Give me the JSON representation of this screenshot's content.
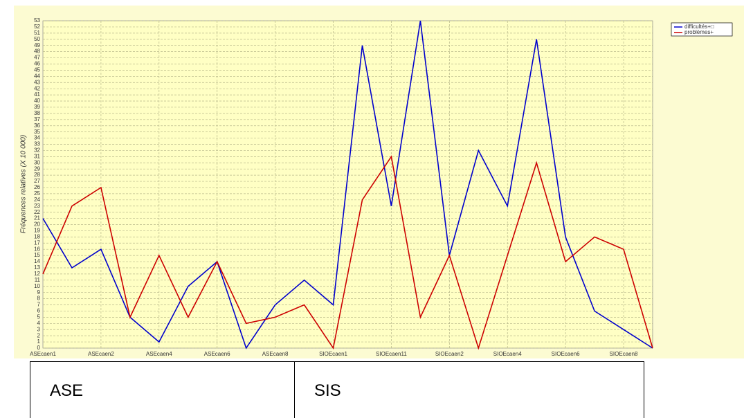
{
  "chart_data": {
    "type": "line",
    "y_label": "Fréquences relatives (X 10 000)",
    "categories": [
      "ASEcaen1",
      null,
      "ASEcaen2",
      null,
      "ASEcaen4",
      null,
      "ASEcaen6",
      null,
      "ASEcaen8",
      null,
      "SIOEcaen1",
      null,
      "SIOEcaen11",
      null,
      "SIOEcaen2",
      null,
      "SIOEcaen4",
      null,
      "SIOEcaen6",
      null,
      "SIOEcaen8",
      null
    ],
    "series": [
      {
        "name": "difficultés+□",
        "color": "#0000cc",
        "values": [
          21,
          13,
          16,
          5,
          1,
          10,
          14,
          0,
          7,
          11,
          7,
          49,
          23,
          53,
          15,
          32,
          23,
          50,
          18,
          6,
          3,
          0
        ]
      },
      {
        "name": "problèmes+",
        "color": "#cc0000",
        "values": [
          12,
          23,
          26,
          5,
          15,
          5,
          14,
          4,
          5,
          7,
          0,
          24,
          31,
          5,
          15,
          0,
          15,
          30,
          14,
          18,
          16,
          0
        ]
      }
    ],
    "ylim": [
      0,
      53
    ],
    "yticks": [
      0,
      1,
      2,
      3,
      4,
      5,
      6,
      7,
      8,
      9,
      10,
      11,
      12,
      13,
      14,
      15,
      16,
      17,
      18,
      19,
      20,
      21,
      22,
      23,
      24,
      25,
      26,
      27,
      28,
      29,
      30,
      31,
      32,
      33,
      34,
      35,
      36,
      37,
      38,
      39,
      40,
      41,
      42,
      43,
      44,
      45,
      46,
      47,
      48,
      49,
      50,
      51,
      52,
      53
    ],
    "grid": true,
    "legend": "top-right"
  },
  "table": {
    "cells": [
      "ASE",
      "SIS"
    ]
  }
}
